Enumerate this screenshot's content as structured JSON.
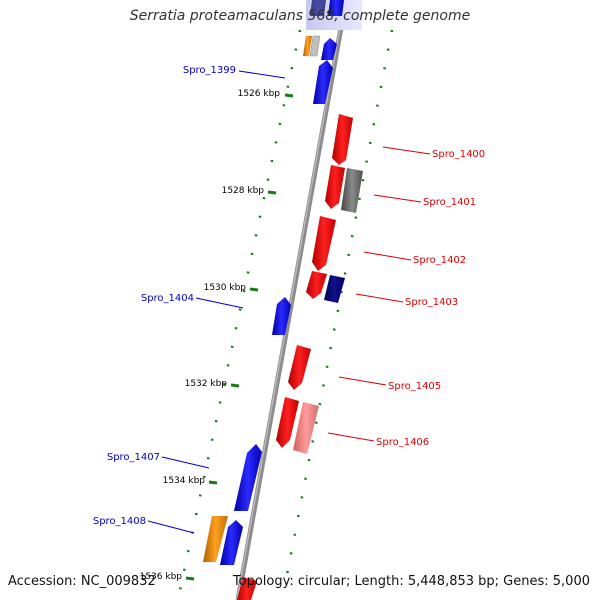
{
  "title": "Serratia proteamaculans 568, complete genome",
  "footer": {
    "accession": "Accession: NC_009832",
    "summary": "Topology: circular; Length: 5,448,853 bp; Genes: 5,000"
  },
  "colors": {
    "backbone": "#909090",
    "tick": "#1a7a1a",
    "forward_gene": "#0000ff",
    "reverse_gene": "#ff0000",
    "label_forward": "#0000cc",
    "label_reverse": "#dd0000"
  },
  "ticks": [
    "1526 kbp",
    "1528 kbp",
    "1530 kbp",
    "1532 kbp",
    "1534 kbp",
    "1536 kbp"
  ],
  "gene_labels": [
    {
      "name": "Spro_1399",
      "strand": "forward"
    },
    {
      "name": "Spro_1400",
      "strand": "reverse"
    },
    {
      "name": "Spro_1401",
      "strand": "reverse"
    },
    {
      "name": "Spro_1402",
      "strand": "reverse"
    },
    {
      "name": "Spro_1403",
      "strand": "reverse"
    },
    {
      "name": "Spro_1404",
      "strand": "forward"
    },
    {
      "name": "Spro_1405",
      "strand": "reverse"
    },
    {
      "name": "Spro_1406",
      "strand": "reverse"
    },
    {
      "name": "Spro_1407",
      "strand": "forward"
    },
    {
      "name": "Spro_1408",
      "strand": "forward"
    }
  ]
}
